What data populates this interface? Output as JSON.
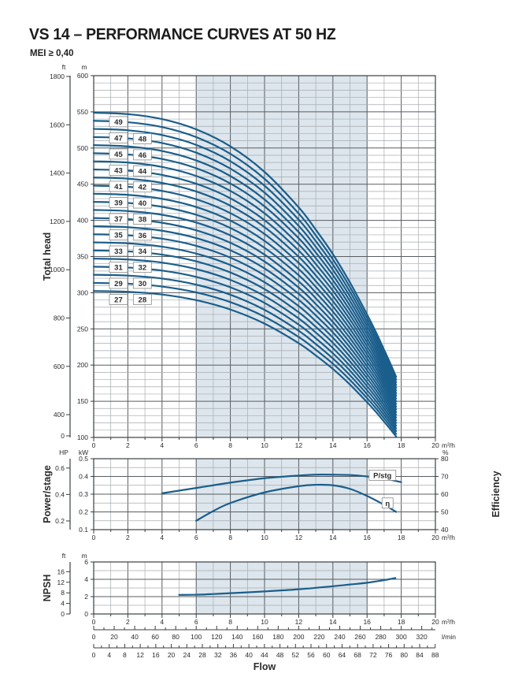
{
  "title": "VS 14 – PERFORMANCE CURVES AT 50 HZ",
  "subtitle": "MEI ≥ 0,40",
  "flow_label": "Flow",
  "units": {
    "flow_m3h": "m³/h",
    "flow_lmin": "l/min",
    "head_m": "m",
    "head_ft": "ft",
    "power_kw": "kW",
    "power_hp": "HP",
    "percent": "%"
  },
  "colors": {
    "curve": "#1a5e8c",
    "band": "#dde6ed",
    "grid_minor": "#a6abaf",
    "grid_major": "#585d61",
    "axis": "#3a3f43",
    "label_box_border": "#8a8a8a",
    "label_box_fill": "#ffffff",
    "label_text": "#14375f",
    "text": "#2b2b2b"
  },
  "chart_data": [
    {
      "type": "line",
      "name": "total-head",
      "ylabel": "Total head",
      "band_flow_range": [
        6,
        16
      ],
      "x_axis": {
        "unit": "m³/h",
        "min": 0,
        "max": 20,
        "labeled_ticks": [
          0,
          2,
          4,
          6,
          8,
          10,
          12,
          14,
          16,
          18,
          20
        ],
        "minor_step": 1
      },
      "y_axis_m": {
        "unit": "m",
        "min": 100,
        "max": 600,
        "major_ticks": [
          100,
          150,
          200,
          250,
          300,
          350,
          400,
          450,
          500,
          550,
          600
        ],
        "minor_step": 10
      },
      "y_axis_ft": {
        "unit": "ft",
        "ticks": [
          1800,
          1600,
          1400,
          1200,
          1000,
          800,
          600,
          400
        ],
        "zero_label": 0
      },
      "stages": [
        27,
        28,
        29,
        30,
        31,
        32,
        33,
        34,
        35,
        36,
        37,
        38,
        39,
        40,
        41,
        42,
        43,
        44,
        45,
        46,
        47,
        48,
        49
      ],
      "per_stage_head": {
        "flows": [
          0,
          2,
          4,
          6,
          8,
          10,
          12,
          13,
          14,
          15,
          16,
          16.5,
          17,
          17.35,
          17.7
        ],
        "head_m": [
          11.2,
          11.16,
          11.02,
          10.73,
          10.25,
          9.53,
          8.53,
          7.9,
          7.21,
          6.41,
          5.51,
          5.03,
          4.51,
          4.14,
          3.75
        ]
      },
      "stage_label_flows": {
        "odd": 1.45,
        "even": 2.85
      }
    },
    {
      "type": "line",
      "name": "power-efficiency",
      "ylabel_left": "Power/stage",
      "ylabel_right": "Efficiency",
      "band_flow_range": [
        6,
        16
      ],
      "x_axis": {
        "unit": "m³/h",
        "min": 0,
        "max": 20,
        "labeled_ticks": [
          0,
          2,
          4,
          6,
          8,
          10,
          12,
          14,
          16,
          18,
          20
        ],
        "minor_step": 1
      },
      "y_axis_kw": {
        "unit": "kW",
        "min": 0.1,
        "max": 0.5,
        "major_ticks": [
          0.1,
          0.2,
          0.3,
          0.4,
          0.5
        ],
        "minor_step": 0.05
      },
      "y_axis_hp": {
        "unit": "HP",
        "ticks": [
          0.2,
          0.4,
          0.6
        ]
      },
      "y_axis_pct": {
        "unit": "%",
        "min": 40,
        "max": 80,
        "major_ticks": [
          40,
          50,
          60,
          70,
          80
        ]
      },
      "series": [
        {
          "name": "P/stg",
          "axis": "kw",
          "label": "P/stg",
          "x": [
            4,
            6,
            8,
            10,
            12,
            13,
            14,
            15,
            16,
            17,
            18
          ],
          "y": [
            0.305,
            0.335,
            0.365,
            0.39,
            0.405,
            0.41,
            0.41,
            0.408,
            0.4,
            0.388,
            0.368
          ],
          "label_pos": {
            "x": 16.9,
            "y": 0.407
          }
        },
        {
          "name": "eta",
          "axis": "pct",
          "label": "η",
          "x": [
            6,
            7,
            8,
            10,
            12,
            13,
            14,
            15,
            16,
            17,
            17.7
          ],
          "y": [
            45,
            50.5,
            55,
            61,
            64.5,
            65.3,
            65,
            63,
            59,
            54,
            50
          ],
          "label_pos": {
            "x": 17.2,
            "y": 55
          }
        }
      ]
    },
    {
      "type": "line",
      "name": "npsh",
      "ylabel": "NPSH",
      "band_flow_range": [
        6,
        16
      ],
      "x_axis": {
        "unit": "m³/h",
        "min": 0,
        "max": 20,
        "labeled_ticks": [
          0,
          2,
          4,
          6,
          8,
          10,
          12,
          14,
          16,
          18,
          20
        ],
        "minor_step": 1
      },
      "y_axis_m": {
        "unit": "m",
        "min": 0,
        "max": 6,
        "major_ticks": [
          0,
          2,
          4,
          6
        ],
        "minor_step": 1
      },
      "y_axis_ft": {
        "unit": "ft",
        "ticks": [
          0,
          4,
          8,
          12,
          16
        ]
      },
      "series": [
        {
          "name": "NPSH",
          "x": [
            5,
            6,
            7,
            8,
            10,
            12,
            14,
            15,
            16,
            17,
            17.66
          ],
          "y": [
            2.2,
            2.22,
            2.3,
            2.4,
            2.6,
            2.85,
            3.2,
            3.4,
            3.6,
            3.9,
            4.15
          ]
        }
      ]
    }
  ],
  "bottom_axes": {
    "lmin": {
      "unit": "l/min",
      "labeled_ticks": [
        0,
        20,
        40,
        60,
        80,
        100,
        120,
        140,
        160,
        180,
        200,
        220,
        240,
        260,
        280,
        300,
        320
      ],
      "minor_step": 10,
      "max_minor": 330
    },
    "gpm": {
      "labeled_ticks": [
        0,
        4,
        8,
        12,
        16,
        20,
        24,
        28,
        32,
        36,
        40,
        44,
        48,
        52,
        56,
        60,
        64,
        68,
        72,
        76,
        80,
        84,
        88
      ],
      "minor_step": 2
    }
  }
}
